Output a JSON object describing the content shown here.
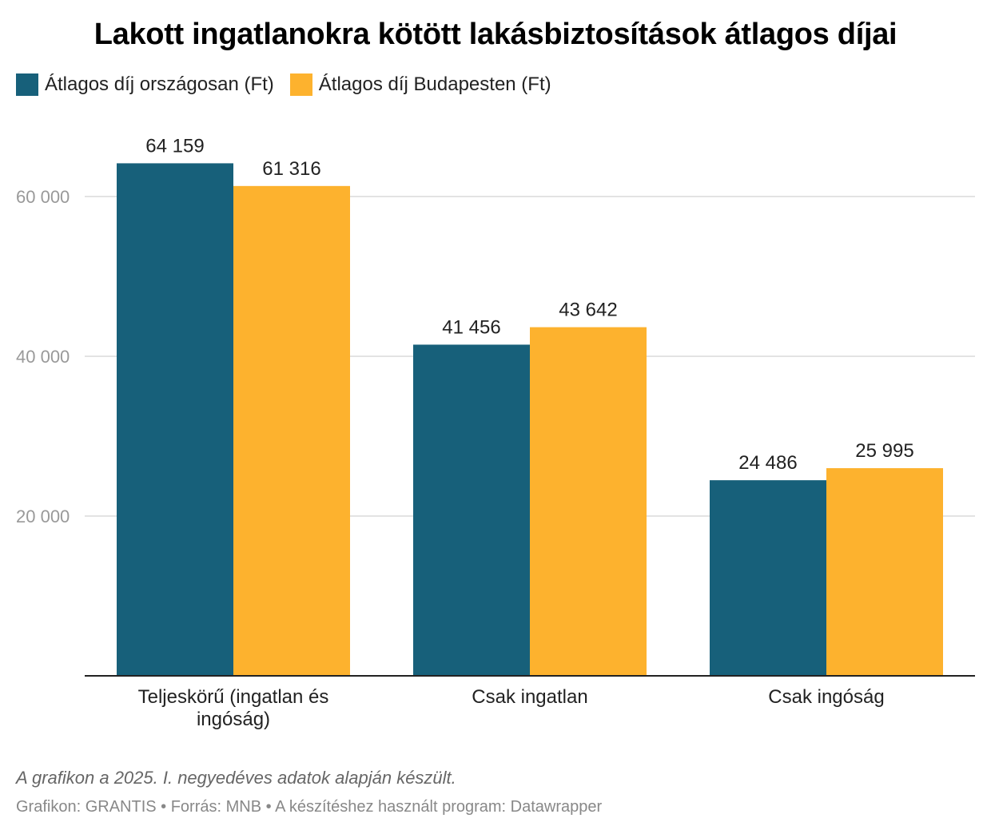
{
  "title": "Lakott ingatlanokra kötött lakásbiztosítások átlagos díjai",
  "colors": {
    "series_1": "#17607a",
    "series_2": "#fdb22e",
    "grid": "#e3e3e3",
    "axis_line": "#222222",
    "tick_label": "#999999"
  },
  "chart_data": {
    "type": "bar",
    "categories": [
      "Teljeskörű (ingatlan és ingóság)",
      "Csak ingatlan",
      "Csak ingóság"
    ],
    "category_label_lines": [
      [
        "Teljeskörű (ingatlan és",
        "ingóság)"
      ],
      [
        "Csak ingatlan"
      ],
      [
        "Csak ingóság"
      ]
    ],
    "series": [
      {
        "name": "Átlagos díj országosan (Ft)",
        "values": [
          64159,
          41456,
          24486
        ],
        "value_labels": [
          "64 159",
          "41 456",
          "24 486"
        ]
      },
      {
        "name": "Átlagos díj Budapesten (Ft)",
        "values": [
          61316,
          43642,
          25995
        ],
        "value_labels": [
          "61 316",
          "43 642",
          "25 995"
        ]
      }
    ],
    "y_ticks": [
      20000,
      40000,
      60000
    ],
    "y_tick_labels": [
      "20 000",
      "40 000",
      "60 000"
    ],
    "ylim": [
      0,
      68000
    ],
    "grid": true,
    "legend_position": "top-left"
  },
  "caption": "A grafikon a 2025. I. negyedéves adatok alapján készült.",
  "credits": "Grafikon: GRANTIS • Forrás: MNB • A készítéshez használt program: Datawrapper"
}
